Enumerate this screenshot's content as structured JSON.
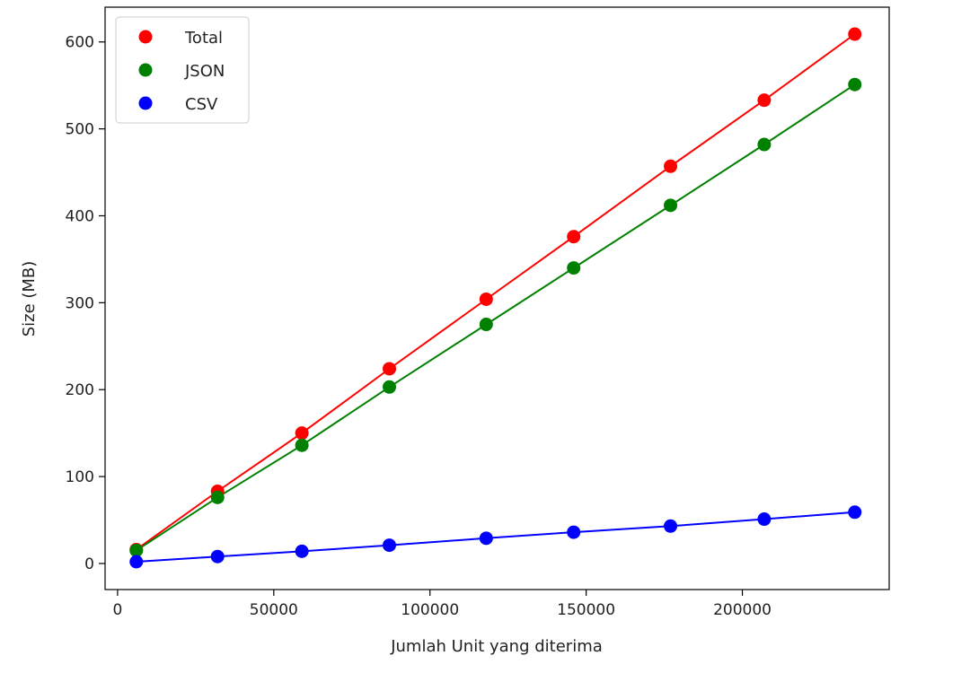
{
  "chart_data": {
    "type": "scatter",
    "xlabel": "Jumlah Unit yang diterima",
    "ylabel": "Size (MB)",
    "xlim": [
      -4000,
      247000
    ],
    "ylim": [
      -30,
      640
    ],
    "xticks": [
      0,
      50000,
      100000,
      150000,
      200000
    ],
    "yticks": [
      0,
      100,
      200,
      300,
      400,
      500,
      600
    ],
    "x": [
      6000,
      32000,
      59000,
      87000,
      118000,
      146000,
      177000,
      207000,
      236000
    ],
    "legend_position": "top-left",
    "grid": false,
    "series": [
      {
        "name": "Total",
        "color": "#ff0000",
        "values": [
          16,
          83,
          150,
          224,
          304,
          376,
          457,
          533,
          609
        ]
      },
      {
        "name": "JSON",
        "color": "#008000",
        "values": [
          15,
          76,
          136,
          203,
          275,
          340,
          412,
          482,
          551
        ]
      },
      {
        "name": "CSV",
        "color": "#0000ff",
        "values": [
          2,
          8,
          14,
          21,
          29,
          36,
          43,
          51,
          59
        ]
      }
    ]
  }
}
